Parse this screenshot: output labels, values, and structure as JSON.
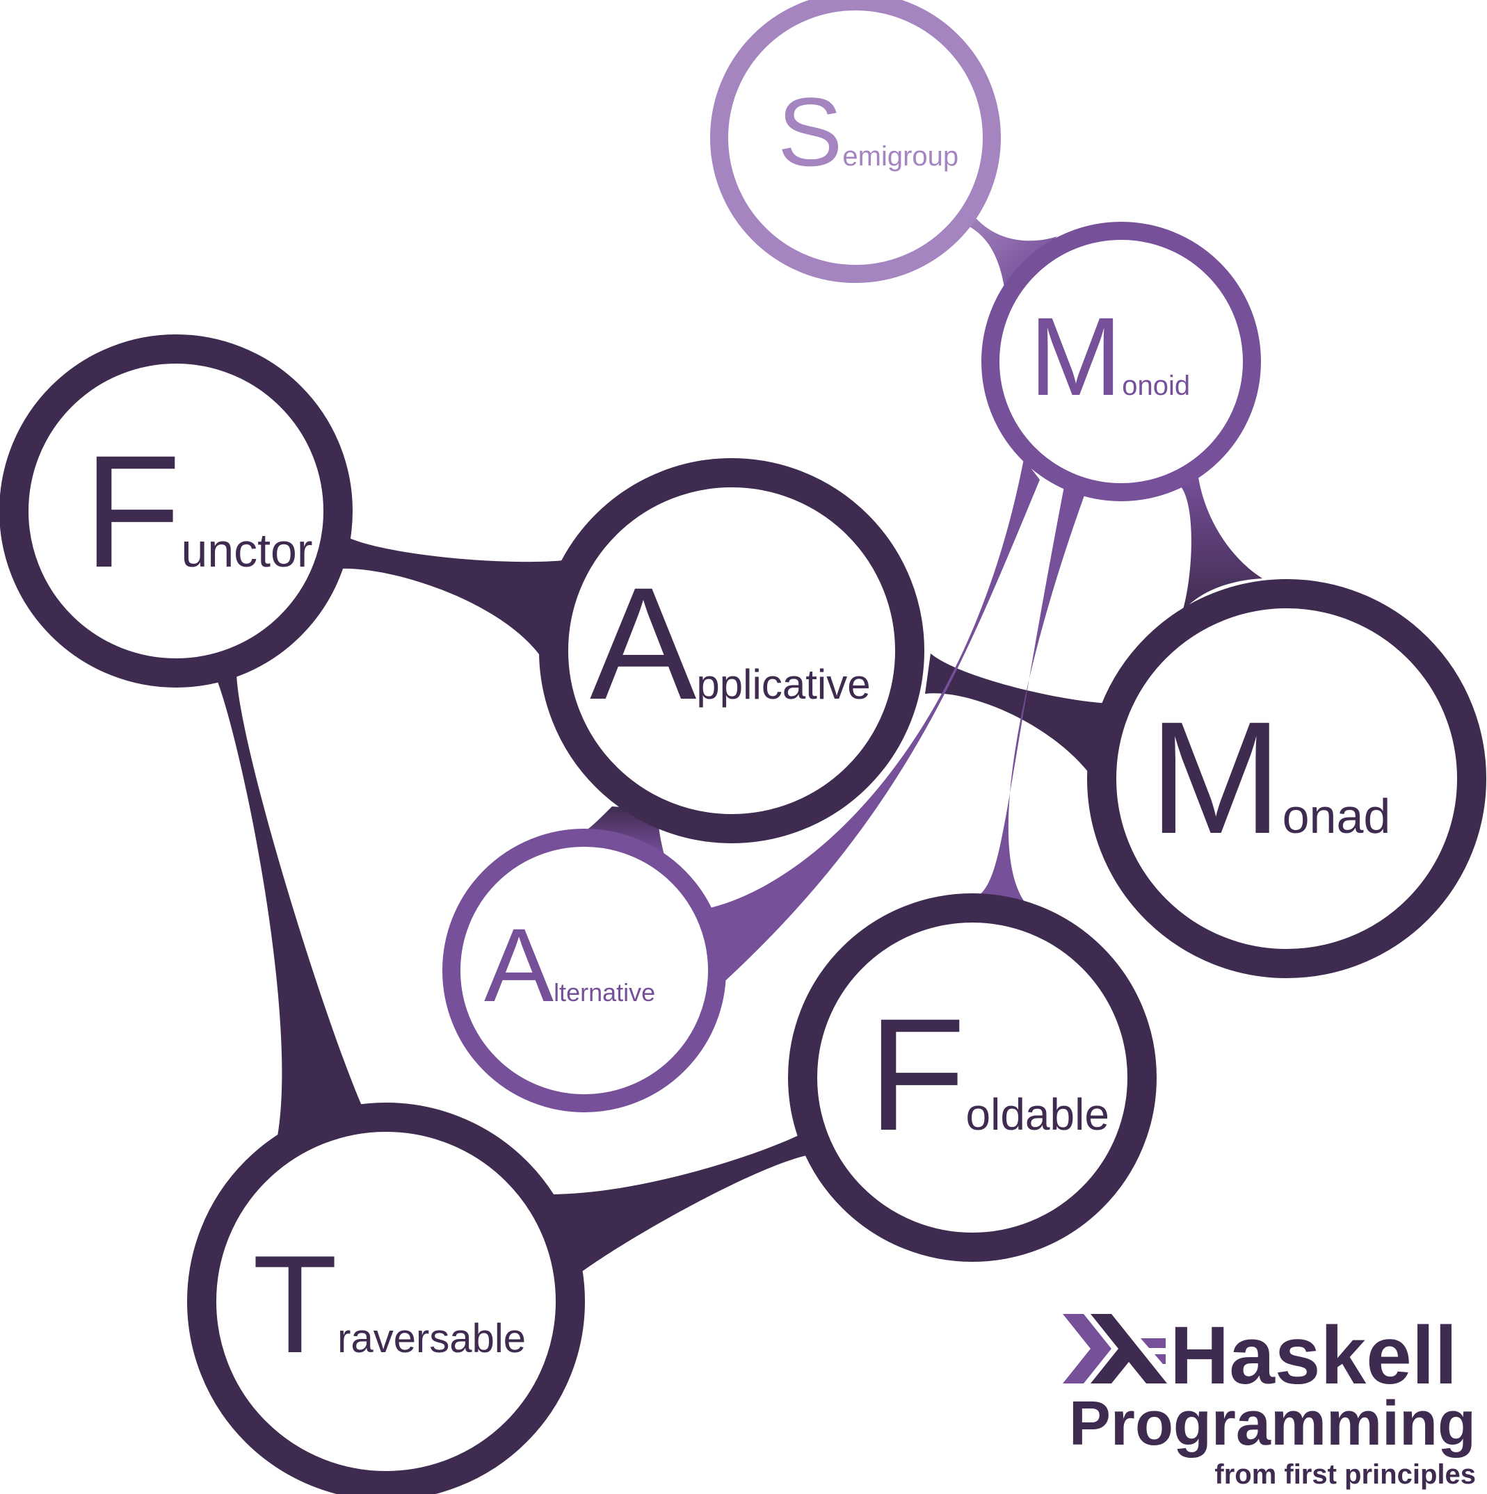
{
  "colors": {
    "dark": "#3f2b4f",
    "mid": "#77509a",
    "light": "#a585c0",
    "background": "#ffffff"
  },
  "nodes": {
    "functor": {
      "initial": "F",
      "rest": "unctor"
    },
    "applicative": {
      "initial": "A",
      "rest": "pplicative"
    },
    "monad": {
      "initial": "M",
      "rest": "onad"
    },
    "monoid": {
      "initial": "M",
      "rest": "onoid"
    },
    "semigroup": {
      "initial": "S",
      "rest": "emigroup"
    },
    "alternative": {
      "initial": "A",
      "rest": "lternative"
    },
    "foldable": {
      "initial": "F",
      "rest": "oldable"
    },
    "traversable": {
      "initial": "T",
      "rest": "raversable"
    }
  },
  "brand": {
    "line1": "Haskell",
    "line2": "Programming",
    "line3": "from first principles",
    "logo_icon": "haskell-logo-icon"
  }
}
